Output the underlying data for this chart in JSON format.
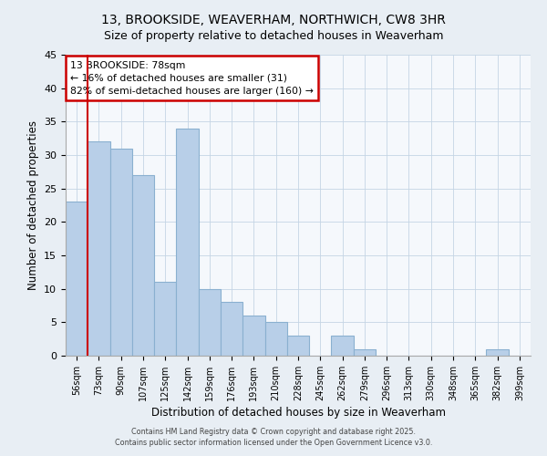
{
  "title": "13, BROOKSIDE, WEAVERHAM, NORTHWICH, CW8 3HR",
  "subtitle": "Size of property relative to detached houses in Weaverham",
  "xlabel": "Distribution of detached houses by size in Weaverham",
  "ylabel": "Number of detached properties",
  "categories": [
    "56sqm",
    "73sqm",
    "90sqm",
    "107sqm",
    "125sqm",
    "142sqm",
    "159sqm",
    "176sqm",
    "193sqm",
    "210sqm",
    "228sqm",
    "245sqm",
    "262sqm",
    "279sqm",
    "296sqm",
    "313sqm",
    "330sqm",
    "348sqm",
    "365sqm",
    "382sqm",
    "399sqm"
  ],
  "values": [
    23,
    32,
    31,
    27,
    11,
    34,
    10,
    8,
    6,
    5,
    3,
    0,
    3,
    1,
    0,
    0,
    0,
    0,
    0,
    1,
    0
  ],
  "bar_color": "#b8cfe8",
  "bar_edge_color": "#8ab0d0",
  "vline_x_idx": 1,
  "vline_color": "#cc0000",
  "annotation_title": "13 BROOKSIDE: 78sqm",
  "annotation_line1": "← 16% of detached houses are smaller (31)",
  "annotation_line2": "82% of semi-detached houses are larger (160) →",
  "annotation_box_edgecolor": "#cc0000",
  "ylim": [
    0,
    45
  ],
  "yticks": [
    0,
    5,
    10,
    15,
    20,
    25,
    30,
    35,
    40,
    45
  ],
  "footer1": "Contains HM Land Registry data © Crown copyright and database right 2025.",
  "footer2": "Contains public sector information licensed under the Open Government Licence v3.0.",
  "bg_color": "#e8eef4",
  "plot_bg_color": "#f5f8fc",
  "grid_color": "#c5d5e5"
}
